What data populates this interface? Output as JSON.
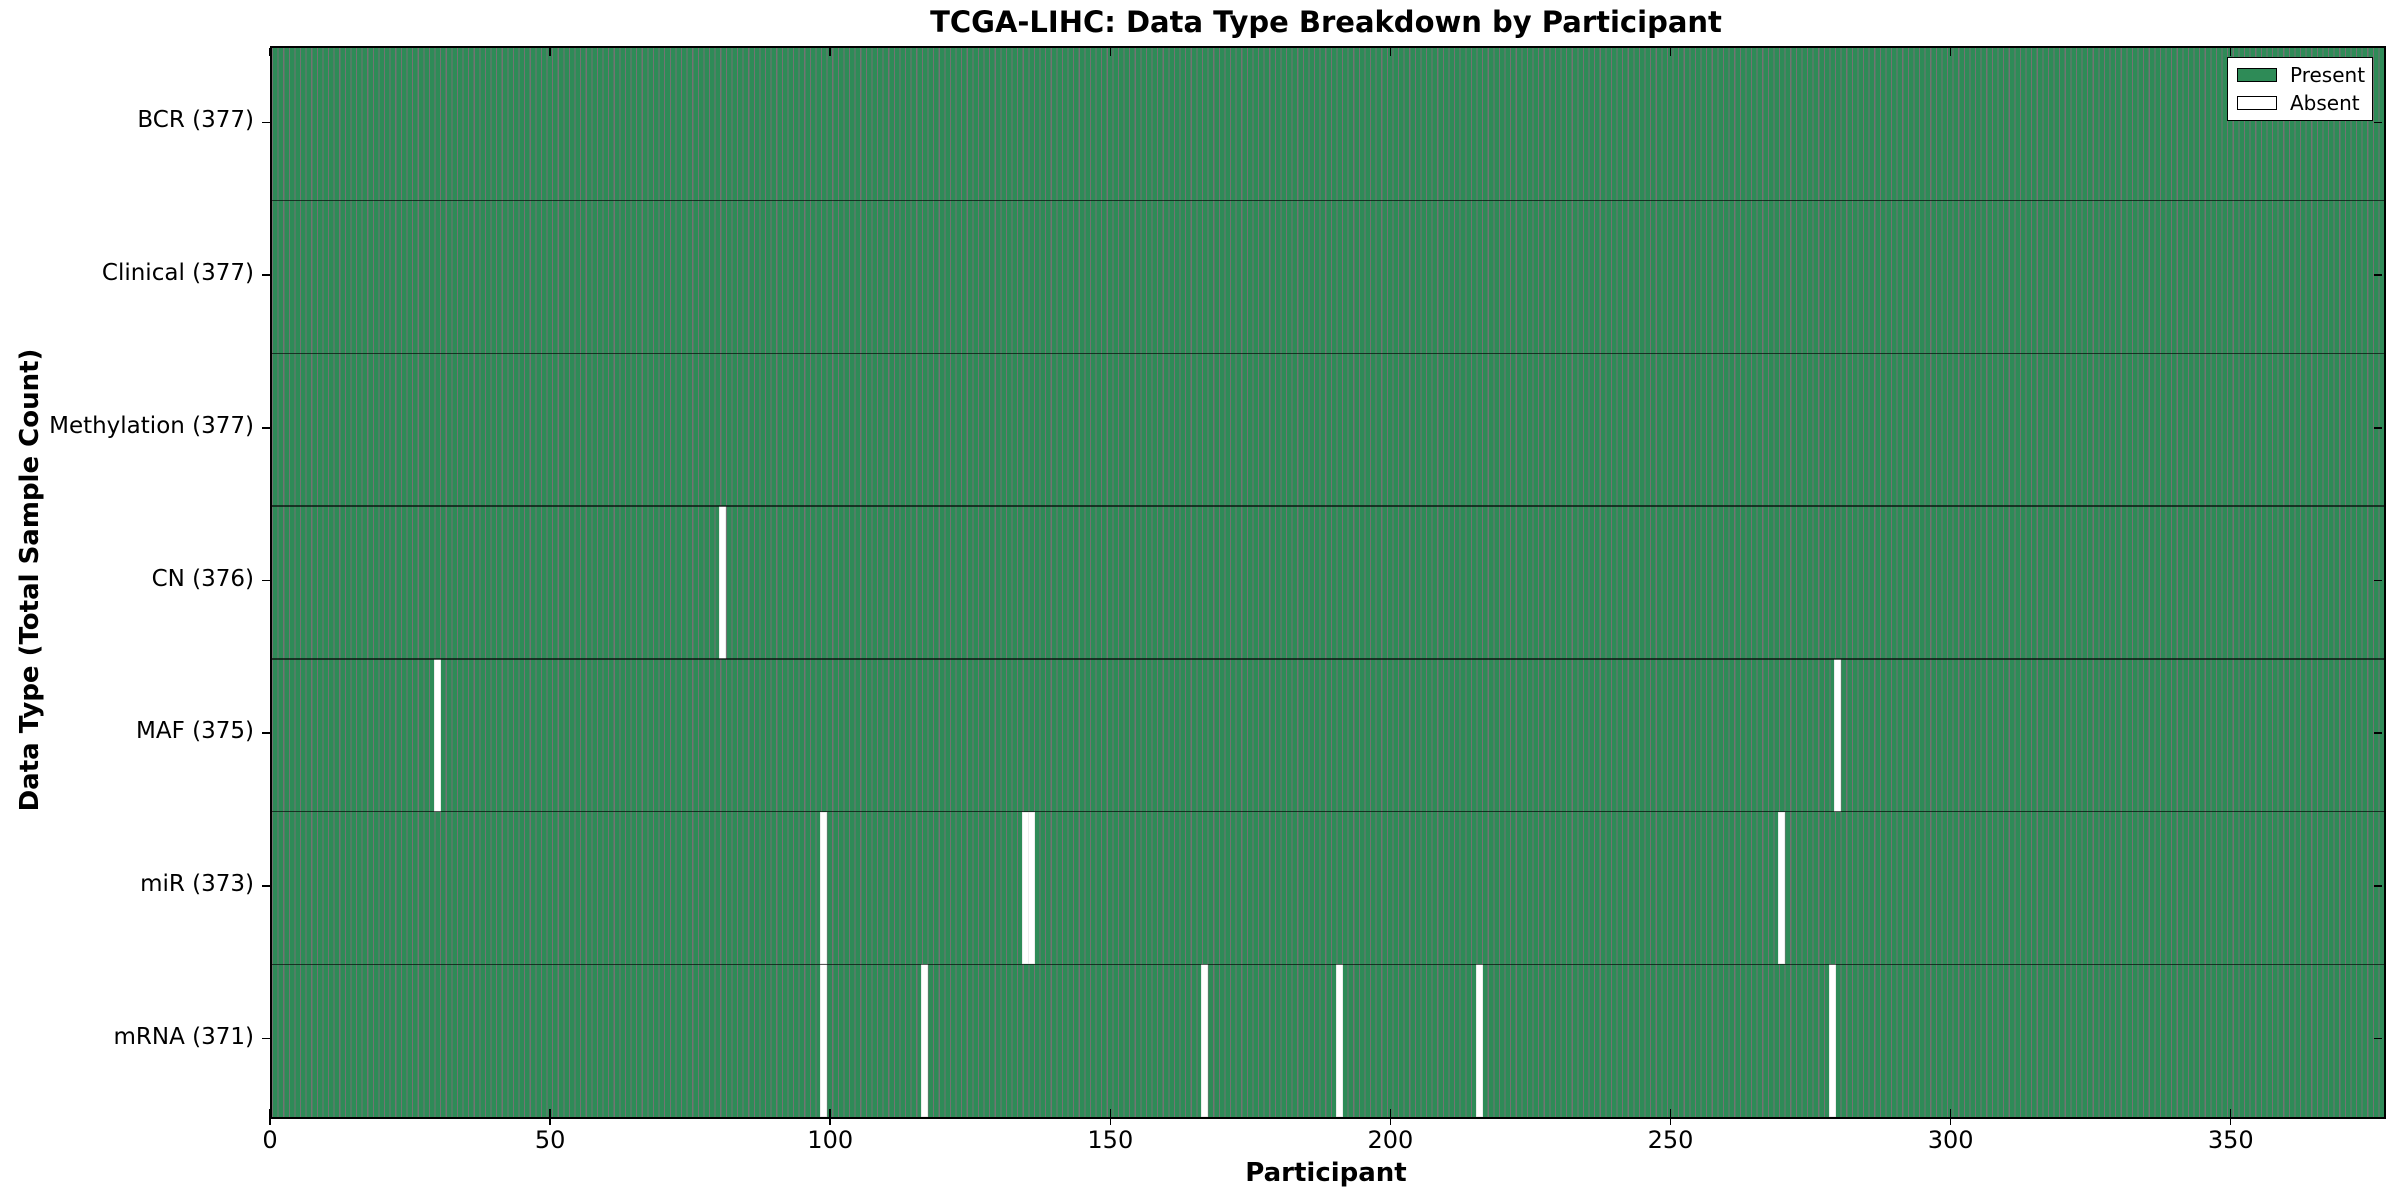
{
  "figure": {
    "title": "TCGA-LIHC: Data Type Breakdown by Participant",
    "xlabel": "Participant",
    "ylabel": "Data Type (Total Sample Count)"
  },
  "chart_data": {
    "type": "heatmap",
    "subtype": "presence-absence-matrix",
    "title": "TCGA-LIHC: Data Type Breakdown by Participant",
    "xlabel": "Participant",
    "ylabel": "Data Type (Total Sample Count)",
    "x_range": [
      0,
      377
    ],
    "n_participants": 377,
    "x_ticks": [
      0,
      50,
      100,
      150,
      200,
      250,
      300,
      350
    ],
    "grid": false,
    "legend_position": "upper right",
    "legend": [
      {
        "label": "Present",
        "color": "#2e8b57"
      },
      {
        "label": "Absent",
        "color": "#ffffff"
      }
    ],
    "rows": [
      {
        "label": "BCR (377)",
        "data_type": "BCR",
        "present_count": 377,
        "absent_participants": []
      },
      {
        "label": "Clinical (377)",
        "data_type": "Clinical",
        "present_count": 377,
        "absent_participants": []
      },
      {
        "label": "Methylation (377)",
        "data_type": "Methylation",
        "present_count": 377,
        "absent_participants": []
      },
      {
        "label": "CN (376)",
        "data_type": "CN",
        "present_count": 376,
        "absent_participants": [
          80
        ]
      },
      {
        "label": "MAF (375)",
        "data_type": "MAF",
        "present_count": 375,
        "absent_participants": [
          29,
          279
        ]
      },
      {
        "label": "miR (373)",
        "data_type": "miR",
        "present_count": 373,
        "absent_participants": [
          98,
          134,
          135,
          269
        ]
      },
      {
        "label": "mRNA (371)",
        "data_type": "mRNA",
        "present_count": 371,
        "absent_participants": [
          98,
          116,
          166,
          190,
          215,
          278
        ]
      }
    ],
    "colors": {
      "present": "#2e8b57",
      "absent": "#ffffff",
      "bar_edge": "#000000",
      "text": "#000000",
      "background": "#ffffff"
    }
  }
}
